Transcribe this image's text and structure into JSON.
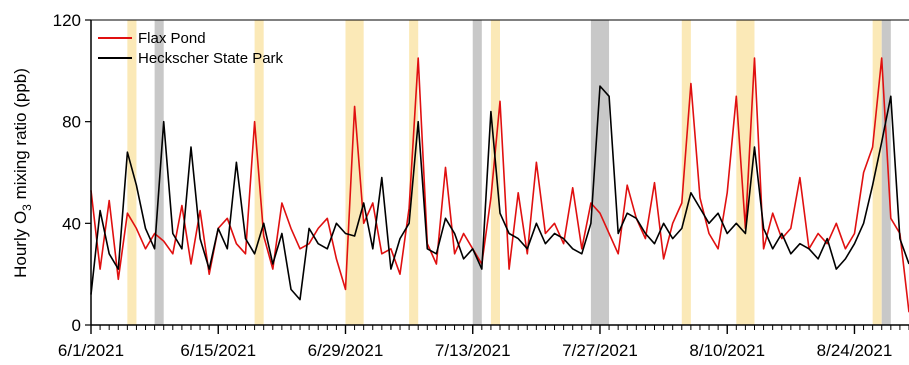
{
  "chart_data": {
    "type": "line",
    "ylabel_parts": [
      "Hourly O",
      "3",
      " mixing ratio (ppb)"
    ],
    "xlim": [
      "2021-06-01",
      "2021-08-30"
    ],
    "ylim": [
      0,
      120
    ],
    "yticks": [
      0,
      40,
      80,
      120
    ],
    "xticks": [
      "6/1/2021",
      "6/15/2021",
      "6/29/2021",
      "7/13/2021",
      "7/27/2021",
      "8/10/2021",
      "8/24/2021"
    ],
    "grid": false,
    "legend_position": "top-left",
    "highlight_bands": {
      "yellow": {
        "color": "#fbe9b7",
        "ranges": [
          [
            "2021-06-05",
            "2021-06-06"
          ],
          [
            "2021-06-19",
            "2021-06-20"
          ],
          [
            "2021-06-29",
            "2021-07-01"
          ],
          [
            "2021-07-06",
            "2021-07-07"
          ],
          [
            "2021-07-15",
            "2021-07-16"
          ],
          [
            "2021-08-05",
            "2021-08-06"
          ],
          [
            "2021-08-11",
            "2021-08-13"
          ],
          [
            "2021-08-26",
            "2021-08-27"
          ]
        ]
      },
      "gray": {
        "color": "#c8c8c8",
        "ranges": [
          [
            "2021-06-08",
            "2021-06-09"
          ],
          [
            "2021-07-13",
            "2021-07-14"
          ],
          [
            "2021-07-26",
            "2021-07-28"
          ],
          [
            "2021-08-27",
            "2021-08-28"
          ]
        ]
      }
    },
    "series": [
      {
        "name": "Flax Pond",
        "color": "#e01010",
        "x": [
          "2021-06-01",
          "2021-06-02",
          "2021-06-03",
          "2021-06-04",
          "2021-06-05",
          "2021-06-06",
          "2021-06-07",
          "2021-06-08",
          "2021-06-09",
          "2021-06-10",
          "2021-06-11",
          "2021-06-12",
          "2021-06-13",
          "2021-06-14",
          "2021-06-15",
          "2021-06-16",
          "2021-06-17",
          "2021-06-18",
          "2021-06-19",
          "2021-06-20",
          "2021-06-21",
          "2021-06-22",
          "2021-06-23",
          "2021-06-24",
          "2021-06-25",
          "2021-06-26",
          "2021-06-27",
          "2021-06-28",
          "2021-06-29",
          "2021-06-30",
          "2021-07-01",
          "2021-07-02",
          "2021-07-03",
          "2021-07-04",
          "2021-07-05",
          "2021-07-06",
          "2021-07-07",
          "2021-07-08",
          "2021-07-09",
          "2021-07-10",
          "2021-07-11",
          "2021-07-12",
          "2021-07-13",
          "2021-07-14",
          "2021-07-15",
          "2021-07-16",
          "2021-07-17",
          "2021-07-18",
          "2021-07-19",
          "2021-07-20",
          "2021-07-21",
          "2021-07-22",
          "2021-07-23",
          "2021-07-24",
          "2021-07-25",
          "2021-07-26",
          "2021-07-27",
          "2021-07-28",
          "2021-07-29",
          "2021-07-30",
          "2021-07-31",
          "2021-08-01",
          "2021-08-02",
          "2021-08-03",
          "2021-08-04",
          "2021-08-05",
          "2021-08-06",
          "2021-08-07",
          "2021-08-08",
          "2021-08-09",
          "2021-08-10",
          "2021-08-11",
          "2021-08-12",
          "2021-08-13",
          "2021-08-14",
          "2021-08-15",
          "2021-08-16",
          "2021-08-17",
          "2021-08-18",
          "2021-08-19",
          "2021-08-20",
          "2021-08-21",
          "2021-08-22",
          "2021-08-23",
          "2021-08-24",
          "2021-08-25",
          "2021-08-26",
          "2021-08-27",
          "2021-08-28",
          "2021-08-29",
          "2021-08-30"
        ],
        "y": [
          53,
          22,
          49,
          18,
          44,
          38,
          30,
          36,
          33,
          28,
          47,
          24,
          45,
          20,
          38,
          42,
          32,
          28,
          80,
          35,
          22,
          48,
          38,
          30,
          32,
          38,
          42,
          26,
          14,
          86,
          40,
          48,
          28,
          30,
          20,
          46,
          105,
          32,
          24,
          62,
          28,
          36,
          30,
          24,
          50,
          88,
          22,
          52,
          28,
          64,
          36,
          40,
          32,
          54,
          30,
          48,
          44,
          36,
          28,
          55,
          42,
          34,
          56,
          26,
          40,
          48,
          95,
          50,
          36,
          30,
          52,
          90,
          38,
          105,
          30,
          44,
          34,
          38,
          58,
          30,
          36,
          32,
          40,
          30,
          36,
          60,
          70,
          105,
          42,
          36,
          5
        ]
      },
      {
        "name": "Heckscher State Park",
        "color": "#000000",
        "x": [
          "2021-06-01",
          "2021-06-02",
          "2021-06-03",
          "2021-06-04",
          "2021-06-05",
          "2021-06-06",
          "2021-06-07",
          "2021-06-08",
          "2021-06-09",
          "2021-06-10",
          "2021-06-11",
          "2021-06-12",
          "2021-06-13",
          "2021-06-14",
          "2021-06-15",
          "2021-06-16",
          "2021-06-17",
          "2021-06-18",
          "2021-06-19",
          "2021-06-20",
          "2021-06-21",
          "2021-06-22",
          "2021-06-23",
          "2021-06-24",
          "2021-06-25",
          "2021-06-26",
          "2021-06-27",
          "2021-06-28",
          "2021-06-29",
          "2021-06-30",
          "2021-07-01",
          "2021-07-02",
          "2021-07-03",
          "2021-07-04",
          "2021-07-05",
          "2021-07-06",
          "2021-07-07",
          "2021-07-08",
          "2021-07-09",
          "2021-07-10",
          "2021-07-11",
          "2021-07-12",
          "2021-07-13",
          "2021-07-14",
          "2021-07-15",
          "2021-07-16",
          "2021-07-17",
          "2021-07-18",
          "2021-07-19",
          "2021-07-20",
          "2021-07-21",
          "2021-07-22",
          "2021-07-23",
          "2021-07-24",
          "2021-07-25",
          "2021-07-26",
          "2021-07-27",
          "2021-07-28",
          "2021-07-29",
          "2021-07-30",
          "2021-07-31",
          "2021-08-01",
          "2021-08-02",
          "2021-08-03",
          "2021-08-04",
          "2021-08-05",
          "2021-08-06",
          "2021-08-07",
          "2021-08-08",
          "2021-08-09",
          "2021-08-10",
          "2021-08-11",
          "2021-08-12",
          "2021-08-13",
          "2021-08-14",
          "2021-08-15",
          "2021-08-16",
          "2021-08-17",
          "2021-08-18",
          "2021-08-19",
          "2021-08-20",
          "2021-08-21",
          "2021-08-22",
          "2021-08-23",
          "2021-08-24",
          "2021-08-25",
          "2021-08-26",
          "2021-08-27",
          "2021-08-28",
          "2021-08-29",
          "2021-08-30"
        ],
        "y": [
          12,
          45,
          28,
          22,
          68,
          55,
          38,
          30,
          80,
          36,
          30,
          70,
          34,
          22,
          38,
          30,
          64,
          34,
          28,
          40,
          24,
          36,
          14,
          10,
          38,
          32,
          30,
          40,
          36,
          35,
          48,
          30,
          58,
          22,
          34,
          40,
          80,
          30,
          28,
          42,
          36,
          26,
          30,
          22,
          84,
          44,
          36,
          34,
          30,
          40,
          32,
          36,
          34,
          30,
          28,
          40,
          94,
          90,
          36,
          44,
          42,
          36,
          32,
          40,
          34,
          38,
          52,
          46,
          40,
          44,
          36,
          40,
          36,
          70,
          38,
          30,
          36,
          28,
          32,
          30,
          26,
          34,
          22,
          26,
          32,
          40,
          55,
          72,
          90,
          34,
          24
        ]
      }
    ]
  }
}
